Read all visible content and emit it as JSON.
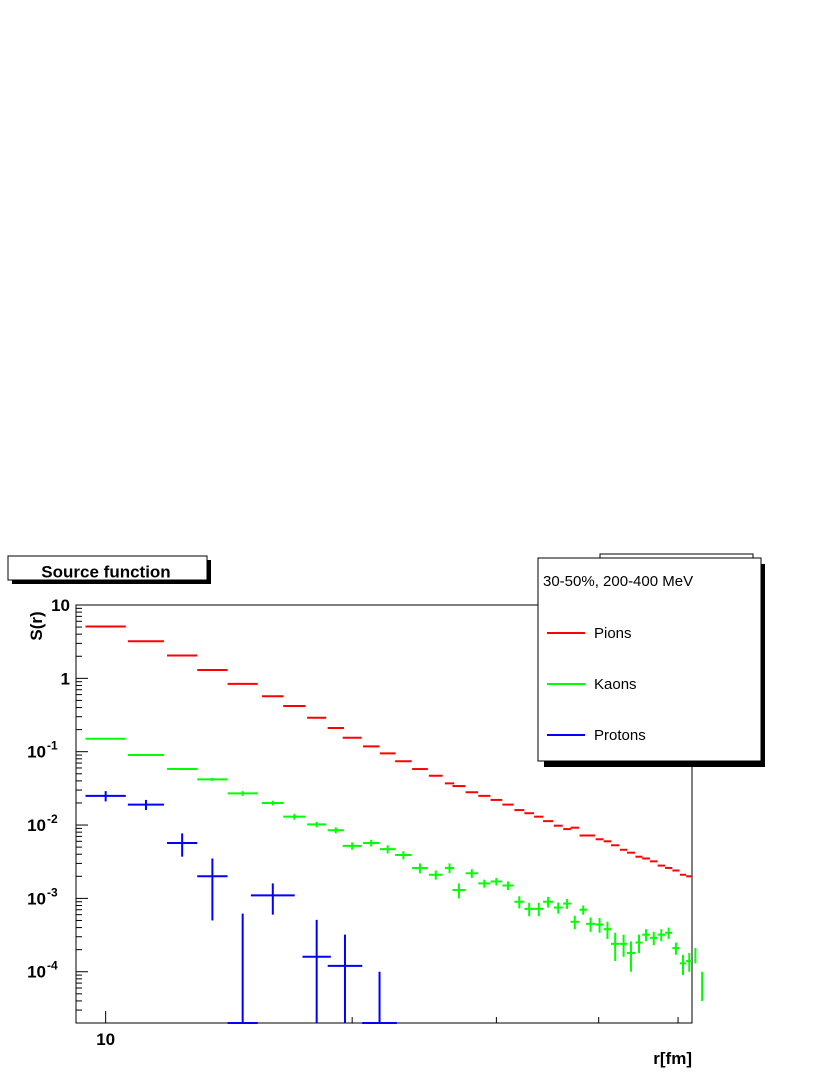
{
  "chart_data": {
    "type": "scatter",
    "title": "Source function",
    "xlabel": "r[fm]",
    "ylabel": "S(r)",
    "x_scale": "log",
    "y_scale": "log",
    "xlim": [
      9.2,
      52
    ],
    "ylim": [
      2e-05,
      10
    ],
    "x_ticklabels": [
      {
        "value": 10,
        "text": "10"
      }
    ],
    "y_ticklabels": [
      {
        "value": 10,
        "base": "10",
        "exp": ""
      },
      {
        "value": 1,
        "base": "1",
        "exp": ""
      },
      {
        "value": 0.1,
        "base": "10",
        "exp": "-1"
      },
      {
        "value": 0.01,
        "base": "10",
        "exp": "-2"
      },
      {
        "value": 0.001,
        "base": "10",
        "exp": "-3"
      },
      {
        "value": 0.0001,
        "base": "10",
        "exp": "-4"
      }
    ],
    "legend": {
      "header": "30-50%, 200-400 MeV",
      "placement": "top-right",
      "entries": [
        "Pions",
        "Kaons",
        "Protons"
      ]
    },
    "grid": false,
    "series": [
      {
        "name": "Pions",
        "color": "#ff0000",
        "points": [
          [
            10.0,
            5.1
          ],
          [
            11.2,
            3.2
          ],
          [
            12.4,
            2.05
          ],
          [
            13.5,
            1.3
          ],
          [
            14.7,
            0.84
          ],
          [
            16.0,
            0.57
          ],
          [
            17.0,
            0.42
          ],
          [
            18.1,
            0.29
          ],
          [
            19.1,
            0.21
          ],
          [
            20.0,
            0.155
          ],
          [
            21.1,
            0.118
          ],
          [
            22.1,
            0.095
          ],
          [
            23.1,
            0.074
          ],
          [
            24.2,
            0.058
          ],
          [
            25.3,
            0.047
          ],
          [
            26.3,
            0.037
          ],
          [
            27.0,
            0.034
          ],
          [
            28.0,
            0.028
          ],
          [
            29.0,
            0.025
          ],
          [
            30.0,
            0.022
          ],
          [
            31.0,
            0.019
          ],
          [
            32.0,
            0.016
          ],
          [
            32.9,
            0.0145
          ],
          [
            33.8,
            0.013
          ],
          [
            34.7,
            0.0113
          ],
          [
            35.7,
            0.0098
          ],
          [
            36.6,
            0.0088
          ],
          [
            37.4,
            0.0092
          ],
          [
            38.3,
            0.0072
          ],
          [
            39.1,
            0.0072
          ],
          [
            40.1,
            0.0064
          ],
          [
            41.0,
            0.006
          ],
          [
            41.9,
            0.0053
          ],
          [
            42.9,
            0.0046
          ],
          [
            43.8,
            0.0042
          ],
          [
            44.8,
            0.0037
          ],
          [
            45.7,
            0.0035
          ],
          [
            46.7,
            0.0032
          ],
          [
            47.7,
            0.0028
          ],
          [
            48.7,
            0.0026
          ],
          [
            49.7,
            0.0024
          ],
          [
            50.7,
            0.0021
          ],
          [
            51.6,
            0.002
          ],
          [
            52.5,
            0.00175
          ],
          [
            53.5,
            0.0016
          ],
          [
            54.6,
            0.00145
          ],
          [
            55.5,
            0.0014
          ]
        ]
      },
      {
        "name": "Kaons",
        "color": "#00ff00",
        "points": [
          [
            10.0,
            0.15,
            0.002
          ],
          [
            11.2,
            0.09,
            0.002
          ],
          [
            12.4,
            0.058,
            0.002
          ],
          [
            13.5,
            0.042,
            0.002
          ],
          [
            14.7,
            0.027,
            0.002
          ],
          [
            16.0,
            0.02,
            0.0015
          ],
          [
            17.0,
            0.013,
            0.0012
          ],
          [
            18.1,
            0.0102,
            0.0009
          ],
          [
            19.1,
            0.0085,
            0.0008
          ],
          [
            20.0,
            0.0052,
            0.0006
          ],
          [
            21.1,
            0.0057,
            0.0006
          ],
          [
            22.1,
            0.0047,
            0.0006
          ],
          [
            23.1,
            0.0039,
            0.0005
          ],
          [
            24.2,
            0.0026,
            0.0004
          ],
          [
            25.3,
            0.0021,
            0.0003
          ],
          [
            26.3,
            0.0026,
            0.0004
          ],
          [
            27.0,
            0.0013,
            0.0003
          ],
          [
            28.0,
            0.0022,
            0.0003
          ],
          [
            29.0,
            0.0016,
            0.0002
          ],
          [
            30.0,
            0.0017,
            0.0002
          ],
          [
            31.0,
            0.0015,
            0.0002
          ],
          [
            32.0,
            0.0009,
            0.00017
          ],
          [
            32.9,
            0.00072,
            0.00015
          ],
          [
            33.8,
            0.00072,
            0.00015
          ],
          [
            34.7,
            0.0009,
            0.00015
          ],
          [
            35.7,
            0.00075,
            0.00013
          ],
          [
            36.6,
            0.00085,
            0.00013
          ],
          [
            37.4,
            0.00048,
            0.0001
          ],
          [
            38.3,
            0.0007,
            0.0001
          ],
          [
            39.1,
            0.00045,
            0.0001
          ],
          [
            40.1,
            0.00044,
            0.0001
          ],
          [
            41.0,
            0.00038,
            0.0001
          ],
          [
            41.9,
            0.00024,
            0.0001
          ],
          [
            42.9,
            0.00024,
            8e-05
          ],
          [
            43.8,
            0.00018,
            8e-05
          ],
          [
            44.8,
            0.00025,
            7e-05
          ],
          [
            45.7,
            0.00032,
            6e-05
          ],
          [
            46.7,
            0.00029,
            6e-05
          ],
          [
            47.7,
            0.00032,
            6e-05
          ],
          [
            48.7,
            0.00034,
            6e-05
          ],
          [
            49.7,
            0.00021,
            4e-05
          ],
          [
            50.7,
            0.00013,
            4e-05
          ],
          [
            51.6,
            0.00014,
            4e-05
          ],
          [
            52.5,
            0.00017,
            4e-05
          ],
          [
            53.5,
            7e-05,
            3e-05
          ]
        ]
      },
      {
        "name": "Protons",
        "color": "#0000ff",
        "points": [
          [
            10.0,
            0.025,
            0.004
          ],
          [
            11.2,
            0.019,
            0.003
          ],
          [
            12.4,
            0.0057,
            0.002
          ],
          [
            13.5,
            0.002,
            0.0015
          ],
          [
            14.7,
            2e-05,
            0.0006
          ],
          [
            16.0,
            0.0011,
            0.0005
          ],
          [
            18.1,
            0.00016,
            0.00035
          ],
          [
            19.6,
            0.00012,
            0.0002
          ],
          [
            21.6,
            2e-05,
            8e-05
          ]
        ]
      }
    ]
  }
}
